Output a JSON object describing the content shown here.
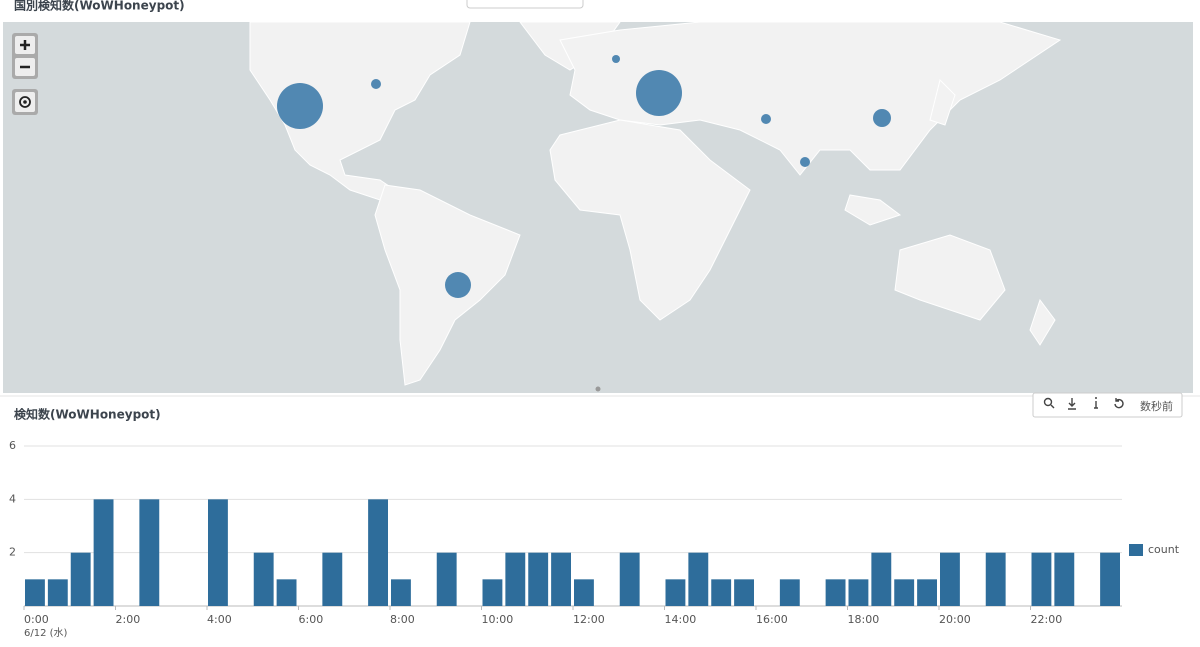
{
  "map_panel": {
    "title": "国別検知数(WoWHoneypot)"
  },
  "toolbar": {
    "refresh_time": "数秒前"
  },
  "chart_data": {
    "type": "bar",
    "title": "検知数(WoWHoneypot)",
    "categories": [
      "0:00",
      null,
      null,
      null,
      "2:00",
      null,
      null,
      null,
      "4:00",
      null,
      null,
      null,
      "6:00",
      null,
      null,
      null,
      "8:00",
      null,
      null,
      null,
      "10:00",
      null,
      null,
      null,
      "12:00",
      null,
      null,
      null,
      "14:00",
      null,
      null,
      null,
      "16:00",
      null,
      null,
      null,
      "18:00",
      null,
      null,
      null,
      "20:00",
      null,
      null,
      null,
      "22:00",
      null,
      null,
      null
    ],
    "date_label": "6/12 (水)",
    "series": [
      {
        "name": "count",
        "color": "#2e6d9b",
        "values": [
          1,
          1,
          2,
          4,
          0,
          4,
          0,
          0,
          4,
          0,
          2,
          1,
          0,
          2,
          0,
          4,
          1,
          0,
          2,
          0,
          1,
          2,
          2,
          2,
          1,
          0,
          2,
          0,
          1,
          2,
          1,
          1,
          0,
          1,
          0,
          1,
          1,
          2,
          1,
          1,
          2,
          0,
          2,
          0,
          2,
          2,
          0,
          2
        ]
      }
    ],
    "ylim": [
      0,
      6
    ],
    "yticks": [
      2,
      4,
      6
    ],
    "grid": true,
    "legend": "right"
  }
}
